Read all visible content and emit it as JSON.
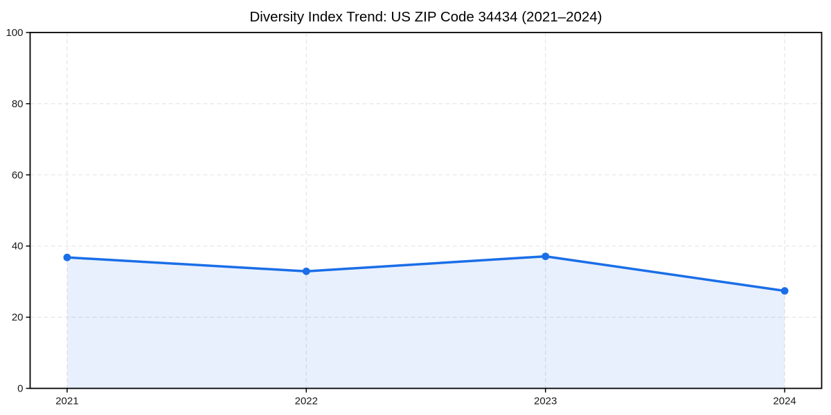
{
  "chart_data": {
    "type": "area",
    "title": "Diversity Index Trend: US ZIP Code 34434 (2021–2024)",
    "x": [
      2021,
      2022,
      2023,
      2024
    ],
    "xtick_labels": [
      "2021",
      "2022",
      "2023",
      "2024"
    ],
    "series": [
      {
        "name": "Diversity Index",
        "values": [
          36.8,
          32.9,
          37.1,
          27.4
        ]
      }
    ],
    "xlabel": "",
    "ylabel": "",
    "ylim": [
      0,
      100
    ],
    "yticks": [
      0,
      20,
      40,
      60,
      80,
      100
    ],
    "grid": true,
    "grid_style": "dashed",
    "legend_position": "none",
    "marker": "circle"
  },
  "colors": {
    "line": "#1a6ee8",
    "marker": "#1a6ee8",
    "fill": "#1a6ee8",
    "fill_opacity": "0.10",
    "grid": "#e5e5e5",
    "spine": "#000000",
    "tick_text": "#1a1a1a",
    "title_text": "#000000",
    "background": "#ffffff"
  }
}
